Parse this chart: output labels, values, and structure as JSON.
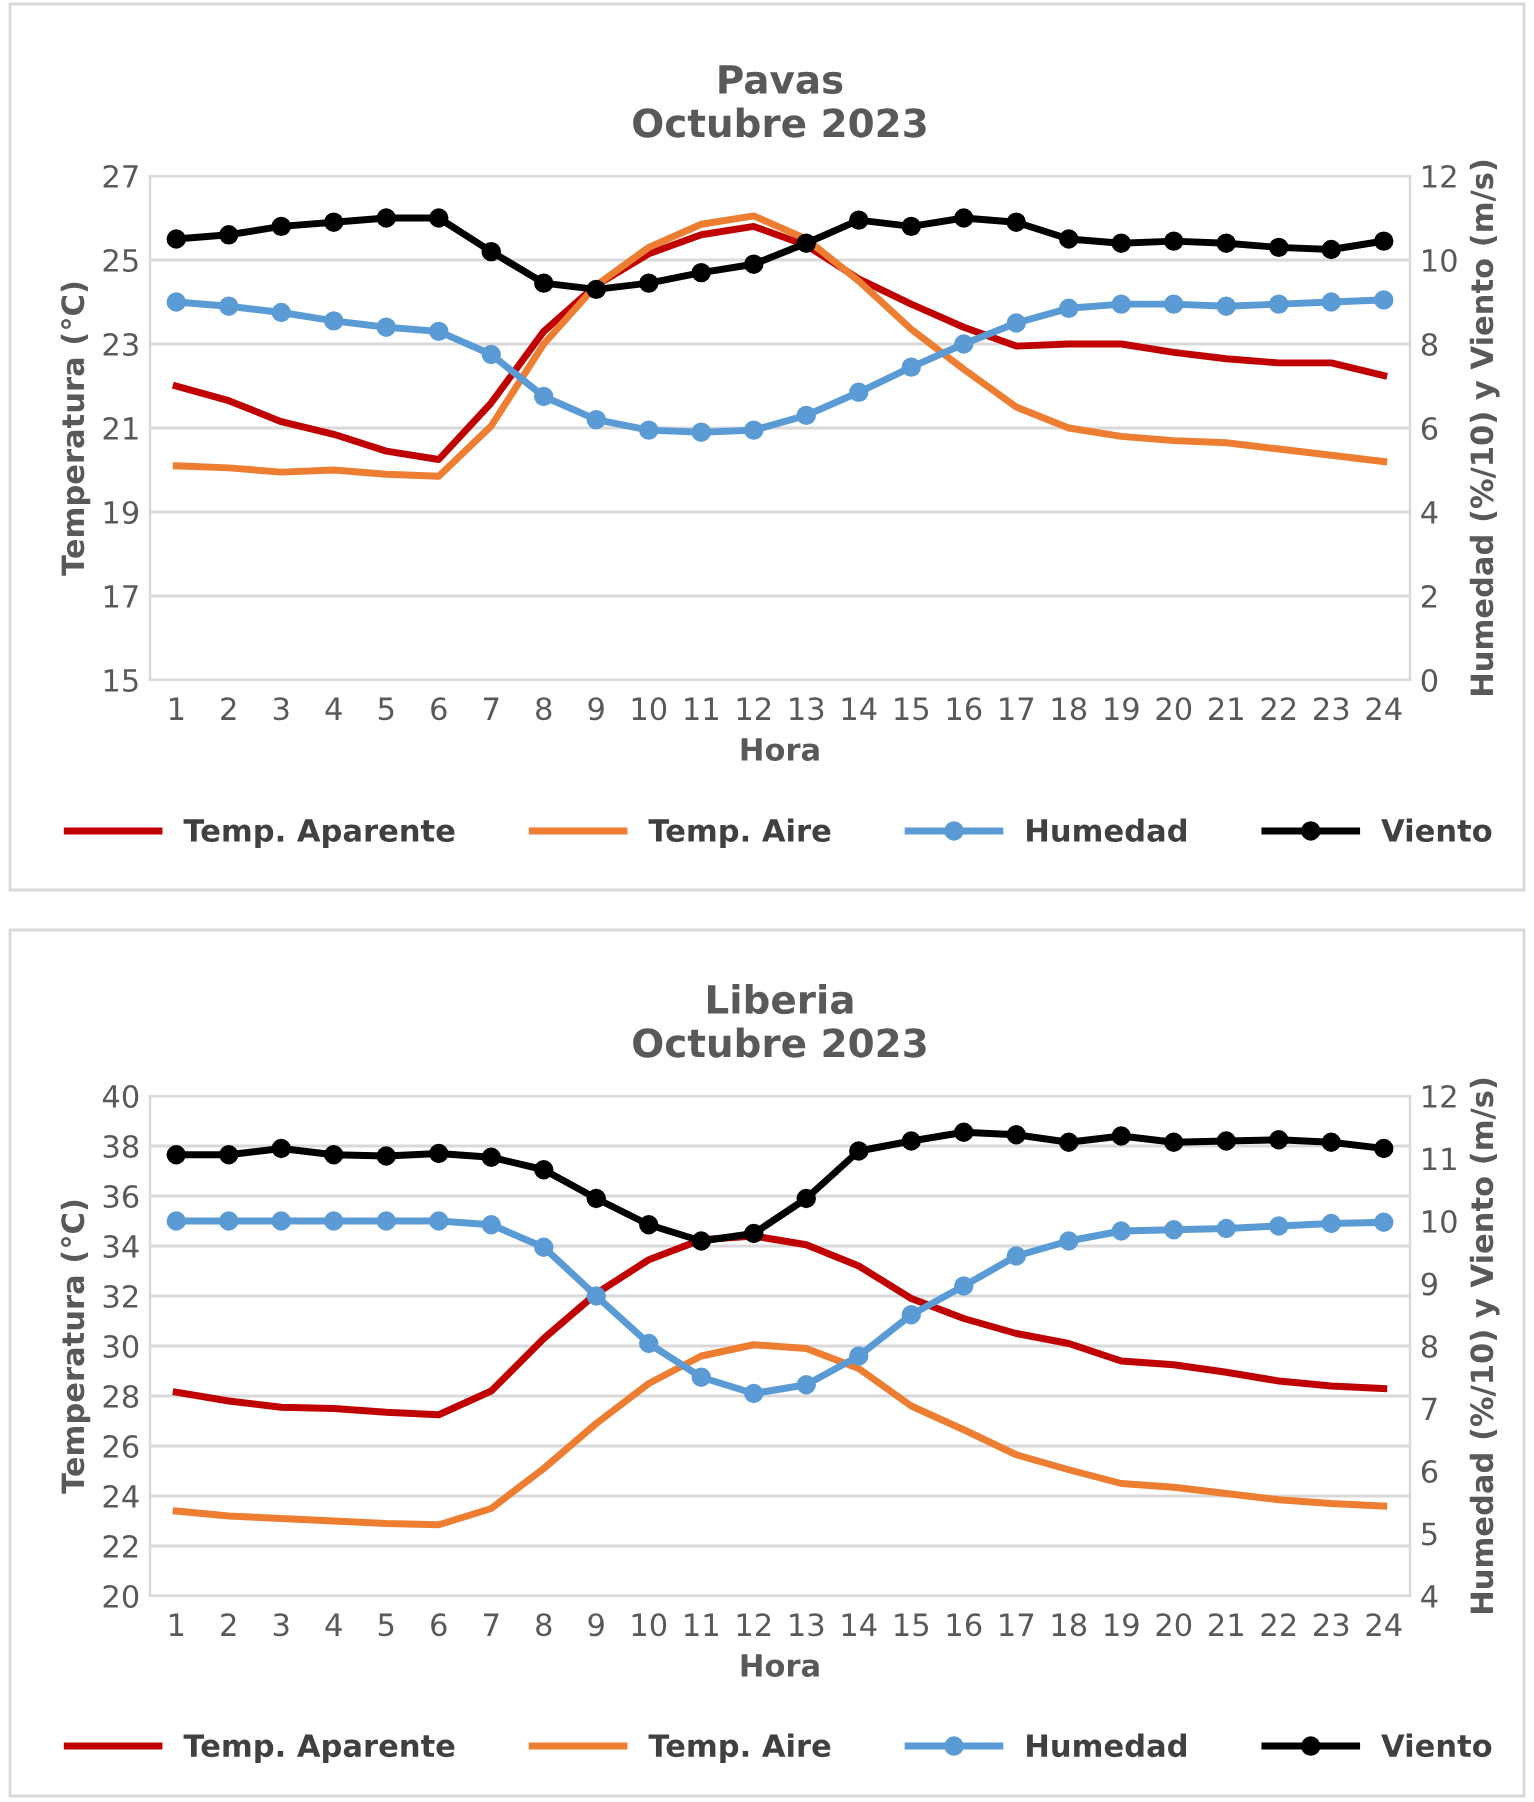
{
  "chart_data": [
    {
      "type": "line",
      "title": "Pavas\nOctubre 2023",
      "xlabel": "Hora",
      "ylabel": "Temperatura (°C)",
      "y2label": "Humedad (%/10) y Viento (m/s)",
      "categories": [
        "1",
        "2",
        "3",
        "4",
        "5",
        "6",
        "7",
        "8",
        "9",
        "10",
        "11",
        "12",
        "13",
        "14",
        "15",
        "16",
        "17",
        "18",
        "19",
        "20",
        "21",
        "22",
        "23",
        "24"
      ],
      "ylim": [
        15,
        27
      ],
      "yticks": [
        15,
        17,
        19,
        21,
        23,
        25,
        27
      ],
      "y2lim": [
        0,
        12
      ],
      "y2ticks": [
        0,
        2,
        4,
        6,
        8,
        10,
        12
      ],
      "grid": "y",
      "legend": "bottom",
      "series": [
        {
          "name": "Temp. Aparente",
          "color": "#c00000",
          "marker": "none",
          "values": [
            22.0,
            21.65,
            21.15,
            20.85,
            20.45,
            20.25,
            21.6,
            23.3,
            24.4,
            25.15,
            25.6,
            25.8,
            25.35,
            24.55,
            23.95,
            23.4,
            22.95,
            23.0,
            23.0,
            22.8,
            22.65,
            22.55,
            22.55,
            22.25
          ]
        },
        {
          "name": "Temp. Aire",
          "color": "#ed7d31",
          "marker": "none",
          "values": [
            20.1,
            20.05,
            19.95,
            20.0,
            19.9,
            19.85,
            21.05,
            23.0,
            24.4,
            25.3,
            25.85,
            26.05,
            25.5,
            24.5,
            23.35,
            22.4,
            21.5,
            21.0,
            20.8,
            20.7,
            20.65,
            20.5,
            20.35,
            20.2
          ]
        },
        {
          "name": "Humedad",
          "color": "#5b9bd5",
          "marker": "circle",
          "axis": "y2",
          "values": [
            9.0,
            8.9,
            8.75,
            8.55,
            8.4,
            8.3,
            7.75,
            6.75,
            6.2,
            5.95,
            5.9,
            5.95,
            6.3,
            6.85,
            7.45,
            8.0,
            8.5,
            8.85,
            8.95,
            8.95,
            8.9,
            8.95,
            9.0,
            9.05
          ]
        },
        {
          "name": "Viento",
          "color": "#000000",
          "marker": "circle",
          "axis": "y2",
          "values": [
            10.5,
            10.6,
            10.8,
            10.9,
            11.0,
            11.0,
            10.2,
            9.45,
            9.3,
            9.45,
            9.7,
            9.9,
            10.4,
            10.95,
            10.8,
            11.0,
            10.9,
            10.5,
            10.4,
            10.45,
            10.4,
            10.3,
            10.25,
            10.45
          ]
        }
      ]
    },
    {
      "type": "line",
      "title": "Liberia\nOctubre 2023",
      "xlabel": "Hora",
      "ylabel": "Temperatura (°C)",
      "y2label": "Humedad (%/10) y Viento (m/s)",
      "categories": [
        "1",
        "2",
        "3",
        "4",
        "5",
        "6",
        "7",
        "8",
        "9",
        "10",
        "11",
        "12",
        "13",
        "14",
        "15",
        "16",
        "17",
        "18",
        "19",
        "20",
        "21",
        "22",
        "23",
        "24"
      ],
      "ylim": [
        20,
        40
      ],
      "yticks": [
        20,
        22,
        24,
        26,
        28,
        30,
        32,
        34,
        36,
        38,
        40
      ],
      "y2lim": [
        4,
        12
      ],
      "y2ticks": [
        4,
        5,
        6,
        7,
        8,
        9,
        10,
        11,
        12
      ],
      "grid": "y",
      "legend": "bottom",
      "series": [
        {
          "name": "Temp. Aparente",
          "color": "#c00000",
          "marker": "none",
          "values": [
            28.15,
            27.8,
            27.55,
            27.5,
            27.35,
            27.25,
            28.2,
            30.3,
            32.1,
            33.45,
            34.25,
            34.4,
            34.05,
            33.2,
            31.9,
            31.1,
            30.5,
            30.1,
            29.4,
            29.25,
            28.95,
            28.6,
            28.4,
            28.3
          ]
        },
        {
          "name": "Temp. Aire",
          "color": "#ed7d31",
          "marker": "none",
          "values": [
            23.4,
            23.2,
            23.1,
            23.0,
            22.9,
            22.85,
            23.5,
            25.1,
            26.9,
            28.5,
            29.6,
            30.05,
            29.9,
            29.1,
            27.6,
            26.65,
            25.65,
            25.05,
            24.5,
            24.35,
            24.1,
            23.85,
            23.7,
            23.6
          ]
        },
        {
          "name": "Humedad",
          "color": "#5b9bd5",
          "marker": "circle",
          "axis": "y2",
          "values": [
            10.0,
            10.0,
            10.0,
            10.0,
            10.0,
            10.0,
            9.94,
            9.58,
            8.8,
            8.04,
            7.5,
            7.24,
            7.38,
            7.84,
            8.5,
            8.96,
            9.44,
            9.68,
            9.84,
            9.86,
            9.88,
            9.92,
            9.96,
            9.98
          ]
        },
        {
          "name": "Viento",
          "color": "#000000",
          "marker": "circle",
          "axis": "y2",
          "values": [
            11.06,
            11.06,
            11.16,
            11.06,
            11.04,
            11.08,
            11.02,
            10.82,
            10.36,
            9.94,
            9.68,
            9.8,
            10.36,
            11.12,
            11.28,
            11.42,
            11.38,
            11.26,
            11.36,
            11.26,
            11.28,
            11.3,
            11.26,
            11.16
          ]
        }
      ]
    }
  ]
}
